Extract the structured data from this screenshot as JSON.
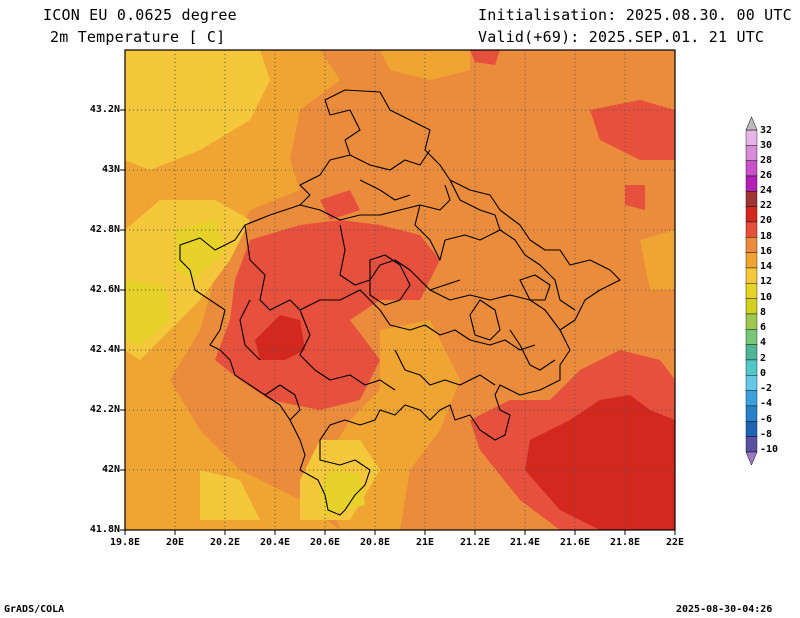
{
  "header": {
    "model": "ICON EU 0.0625 degree",
    "variable": "2m Temperature [ C]",
    "initialisation": "Initialisation: 2025.08.30. 00 UTC",
    "valid": "Valid(+69): 2025.SEP.01. 21 UTC"
  },
  "axes": {
    "lat_labels": [
      "43.2N",
      "43N",
      "42.8N",
      "42.6N",
      "42.4N",
      "42.2N",
      "42N",
      "41.8N"
    ],
    "lon_labels": [
      "19.8E",
      "20E",
      "20.2E",
      "20.4E",
      "20.6E",
      "20.8E",
      "21E",
      "21.2E",
      "21.4E",
      "21.6E",
      "21.8E",
      "22E"
    ],
    "lat_range": [
      41.8,
      43.4
    ],
    "lon_range": [
      19.8,
      22.0
    ]
  },
  "colorbar": {
    "labels": [
      "32",
      "30",
      "28",
      "26",
      "24",
      "22",
      "20",
      "18",
      "16",
      "14",
      "12",
      "10",
      "8",
      "6",
      "4",
      "2",
      "0",
      "-2",
      "-4",
      "-6",
      "-8",
      "-10"
    ],
    "colors": {
      "30_32": "#e6b4e6",
      "28_30": "#d68cd6",
      "26_28": "#c850c8",
      "24_26": "#b41eb4",
      "22_24": "#a03232",
      "20_22": "#d2281e",
      "18_20": "#e6503c",
      "16_18": "#eb8c3c",
      "14_16": "#f0a532",
      "12_14": "#f5c83c",
      "10_12": "#e6d228",
      "8_10": "#d2d21e",
      "6_8": "#a0c850",
      "4_6": "#78c878",
      "2_4": "#50b496",
      "0_2": "#50c8c8",
      "m2_0": "#64c8e6",
      "m4_m2": "#3ca0dc",
      "m6_m4": "#2882c8",
      "m8_m6": "#1e64b4",
      "m10_m8": "#5a50a0"
    }
  },
  "footer": {
    "left": "GrADS/COLA",
    "right": "2025-08-30-04:26"
  }
}
